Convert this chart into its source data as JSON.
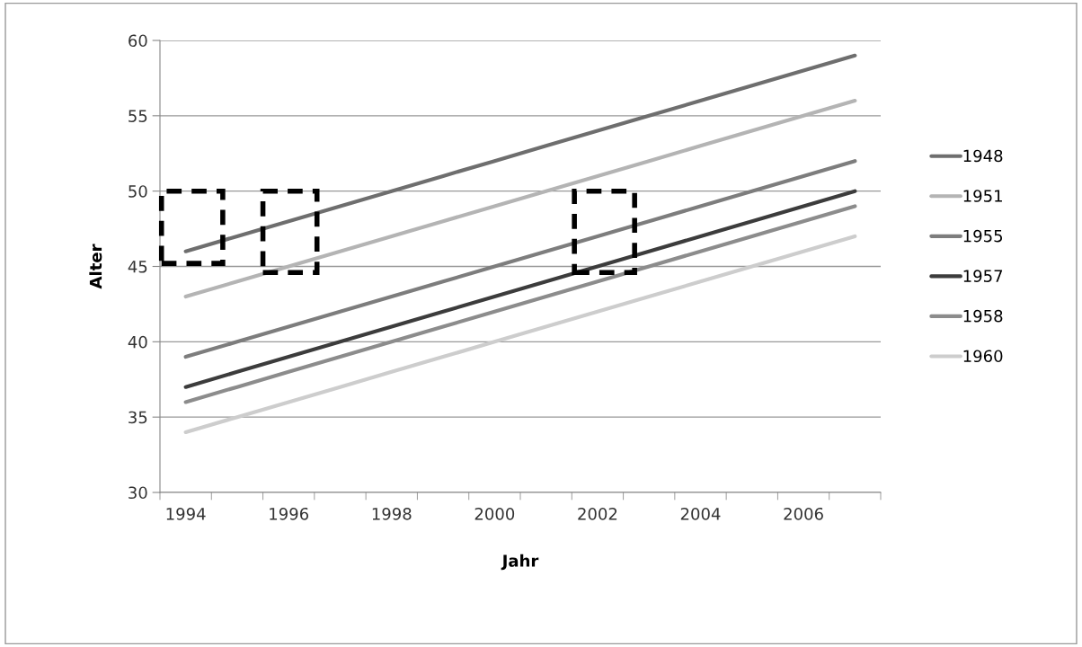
{
  "chart_data": {
    "type": "line",
    "xlabel": "Jahr",
    "ylabel": "Alter",
    "categories": [
      "1994",
      null,
      "1996",
      null,
      "1998",
      null,
      "2000",
      null,
      "2002",
      null,
      "2004",
      null,
      "2006",
      null
    ],
    "series": [
      {
        "name": "1948",
        "color": "#6e6e6e",
        "values": [
          46,
          47,
          48,
          49,
          50,
          51,
          52,
          53,
          54,
          55,
          56,
          57,
          58,
          59
        ]
      },
      {
        "name": "1951",
        "color": "#b4b4b4",
        "values": [
          43,
          44,
          45,
          46,
          47,
          48,
          49,
          50,
          51,
          52,
          53,
          54,
          55,
          56
        ]
      },
      {
        "name": "1955",
        "color": "#7d7d7d",
        "values": [
          39,
          40,
          41,
          42,
          43,
          44,
          45,
          46,
          47,
          48,
          49,
          50,
          51,
          52
        ]
      },
      {
        "name": "1957",
        "color": "#3c3c3c",
        "values": [
          37,
          38,
          39,
          40,
          41,
          42,
          43,
          44,
          45,
          46,
          47,
          48,
          49,
          50
        ]
      },
      {
        "name": "1958",
        "color": "#8c8c8c",
        "values": [
          36,
          37,
          38,
          39,
          40,
          41,
          42,
          43,
          44,
          45,
          46,
          47,
          48,
          49
        ]
      },
      {
        "name": "1960",
        "color": "#cdcdcd",
        "values": [
          34,
          35,
          36,
          37,
          38,
          39,
          40,
          41,
          42,
          43,
          44,
          45,
          46,
          47
        ]
      }
    ],
    "ylim": [
      30,
      60
    ],
    "yticks": [
      30,
      35,
      40,
      45,
      50,
      55,
      60
    ],
    "grid": "y",
    "legend": "right",
    "marker": "none",
    "line_style": "solid"
  }
}
